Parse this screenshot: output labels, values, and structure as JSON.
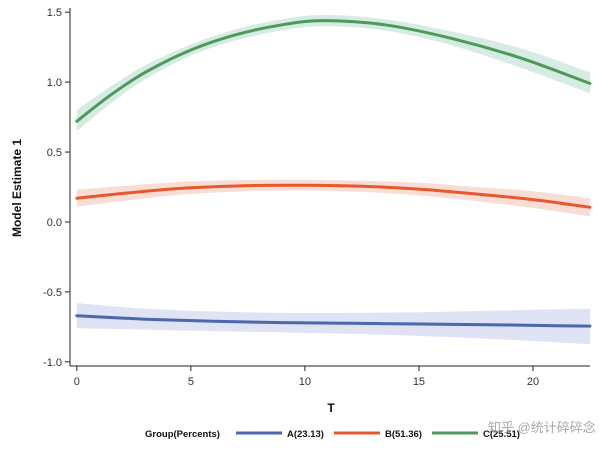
{
  "chart_data": {
    "type": "line",
    "xlabel": "T",
    "ylabel": "Model Estimate 1",
    "xlim": [
      -0.3,
      22.5
    ],
    "ylim": [
      -1.03,
      1.53
    ],
    "xticks": [
      0,
      5,
      10,
      15,
      20
    ],
    "xtick_labels": [
      "0",
      "5",
      "10",
      "15",
      "20"
    ],
    "yticks": [
      -1.0,
      -0.5,
      0.0,
      0.5,
      1.0,
      1.5
    ],
    "ytick_labels": [
      "-1.0",
      "-0.5",
      "0.0",
      "0.5",
      "1.0",
      "1.5"
    ],
    "grid": false,
    "legend_position": "bottom",
    "legend_title": "Group(Percents)",
    "series": [
      {
        "name": "A(23.13)",
        "color": "#4a68ab",
        "band_color": "#dfe3f3",
        "x": [
          0,
          3,
          6,
          9,
          12,
          15,
          18,
          21,
          22.5
        ],
        "y": [
          -0.67,
          -0.695,
          -0.71,
          -0.72,
          -0.725,
          -0.73,
          -0.735,
          -0.742,
          -0.745
        ],
        "lower": [
          -0.76,
          -0.77,
          -0.78,
          -0.79,
          -0.8,
          -0.815,
          -0.835,
          -0.86,
          -0.875
        ],
        "upper": [
          -0.58,
          -0.62,
          -0.64,
          -0.65,
          -0.65,
          -0.645,
          -0.635,
          -0.625,
          -0.62
        ]
      },
      {
        "name": "B(51.36)",
        "color": "#e8582a",
        "band_color": "#f8ddd6",
        "x": [
          0,
          3,
          5,
          7.5,
          10,
          12.5,
          15,
          17.5,
          20,
          22.5
        ],
        "y": [
          0.17,
          0.22,
          0.245,
          0.26,
          0.262,
          0.255,
          0.235,
          0.2,
          0.16,
          0.105
        ],
        "lower": [
          0.11,
          0.17,
          0.2,
          0.22,
          0.225,
          0.215,
          0.19,
          0.15,
          0.1,
          0.04
        ],
        "upper": [
          0.23,
          0.27,
          0.29,
          0.3,
          0.3,
          0.295,
          0.28,
          0.25,
          0.22,
          0.17
        ]
      },
      {
        "name": "C(25.51)",
        "color": "#4d9a5a",
        "band_color": "#d6ebe2",
        "x": [
          0,
          1.5,
          3,
          5,
          7,
          9,
          10.8,
          13.5,
          16.5,
          19.5,
          22.5
        ],
        "y": [
          0.72,
          0.91,
          1.07,
          1.23,
          1.34,
          1.41,
          1.44,
          1.41,
          1.31,
          1.17,
          0.99
        ],
        "lower": [
          0.65,
          0.85,
          1.02,
          1.19,
          1.3,
          1.37,
          1.4,
          1.37,
          1.26,
          1.1,
          0.92
        ],
        "upper": [
          0.8,
          0.97,
          1.12,
          1.27,
          1.38,
          1.45,
          1.48,
          1.45,
          1.36,
          1.24,
          1.07
        ]
      }
    ]
  },
  "watermark": "知乎 @统计碎碎念"
}
